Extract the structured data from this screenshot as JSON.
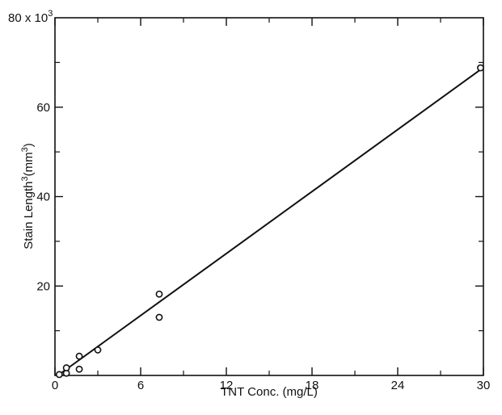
{
  "chart_data": {
    "type": "scatter",
    "title": "",
    "xlabel": "TNT Conc. (mg/L)",
    "ylabel": {
      "main": "Stain Length",
      "sup": "3",
      "unit_open": "(mm",
      "unit_sup": "3",
      "unit_close": ")"
    },
    "xlim": [
      0,
      30
    ],
    "ylim": [
      0,
      80
    ],
    "x_ticks": [
      0,
      6,
      12,
      18,
      24,
      30
    ],
    "y_ticks": [
      20,
      40,
      60
    ],
    "y_top_label": {
      "main": "80 x 10",
      "sup": "3"
    },
    "points": [
      {
        "x": 0.3,
        "y": 0.2
      },
      {
        "x": 0.8,
        "y": 0.5
      },
      {
        "x": 0.8,
        "y": 1.7
      },
      {
        "x": 1.7,
        "y": 1.4
      },
      {
        "x": 1.7,
        "y": 4.3
      },
      {
        "x": 3.0,
        "y": 5.7
      },
      {
        "x": 7.3,
        "y": 13.0
      },
      {
        "x": 7.3,
        "y": 18.2
      },
      {
        "x": 29.8,
        "y": 68.8
      }
    ],
    "fit_line": {
      "x": [
        0.2,
        29.8
      ],
      "y": [
        0.0,
        68.4
      ]
    },
    "grid": false,
    "legend": "none",
    "marker": "open-circle",
    "color": "#111111"
  }
}
